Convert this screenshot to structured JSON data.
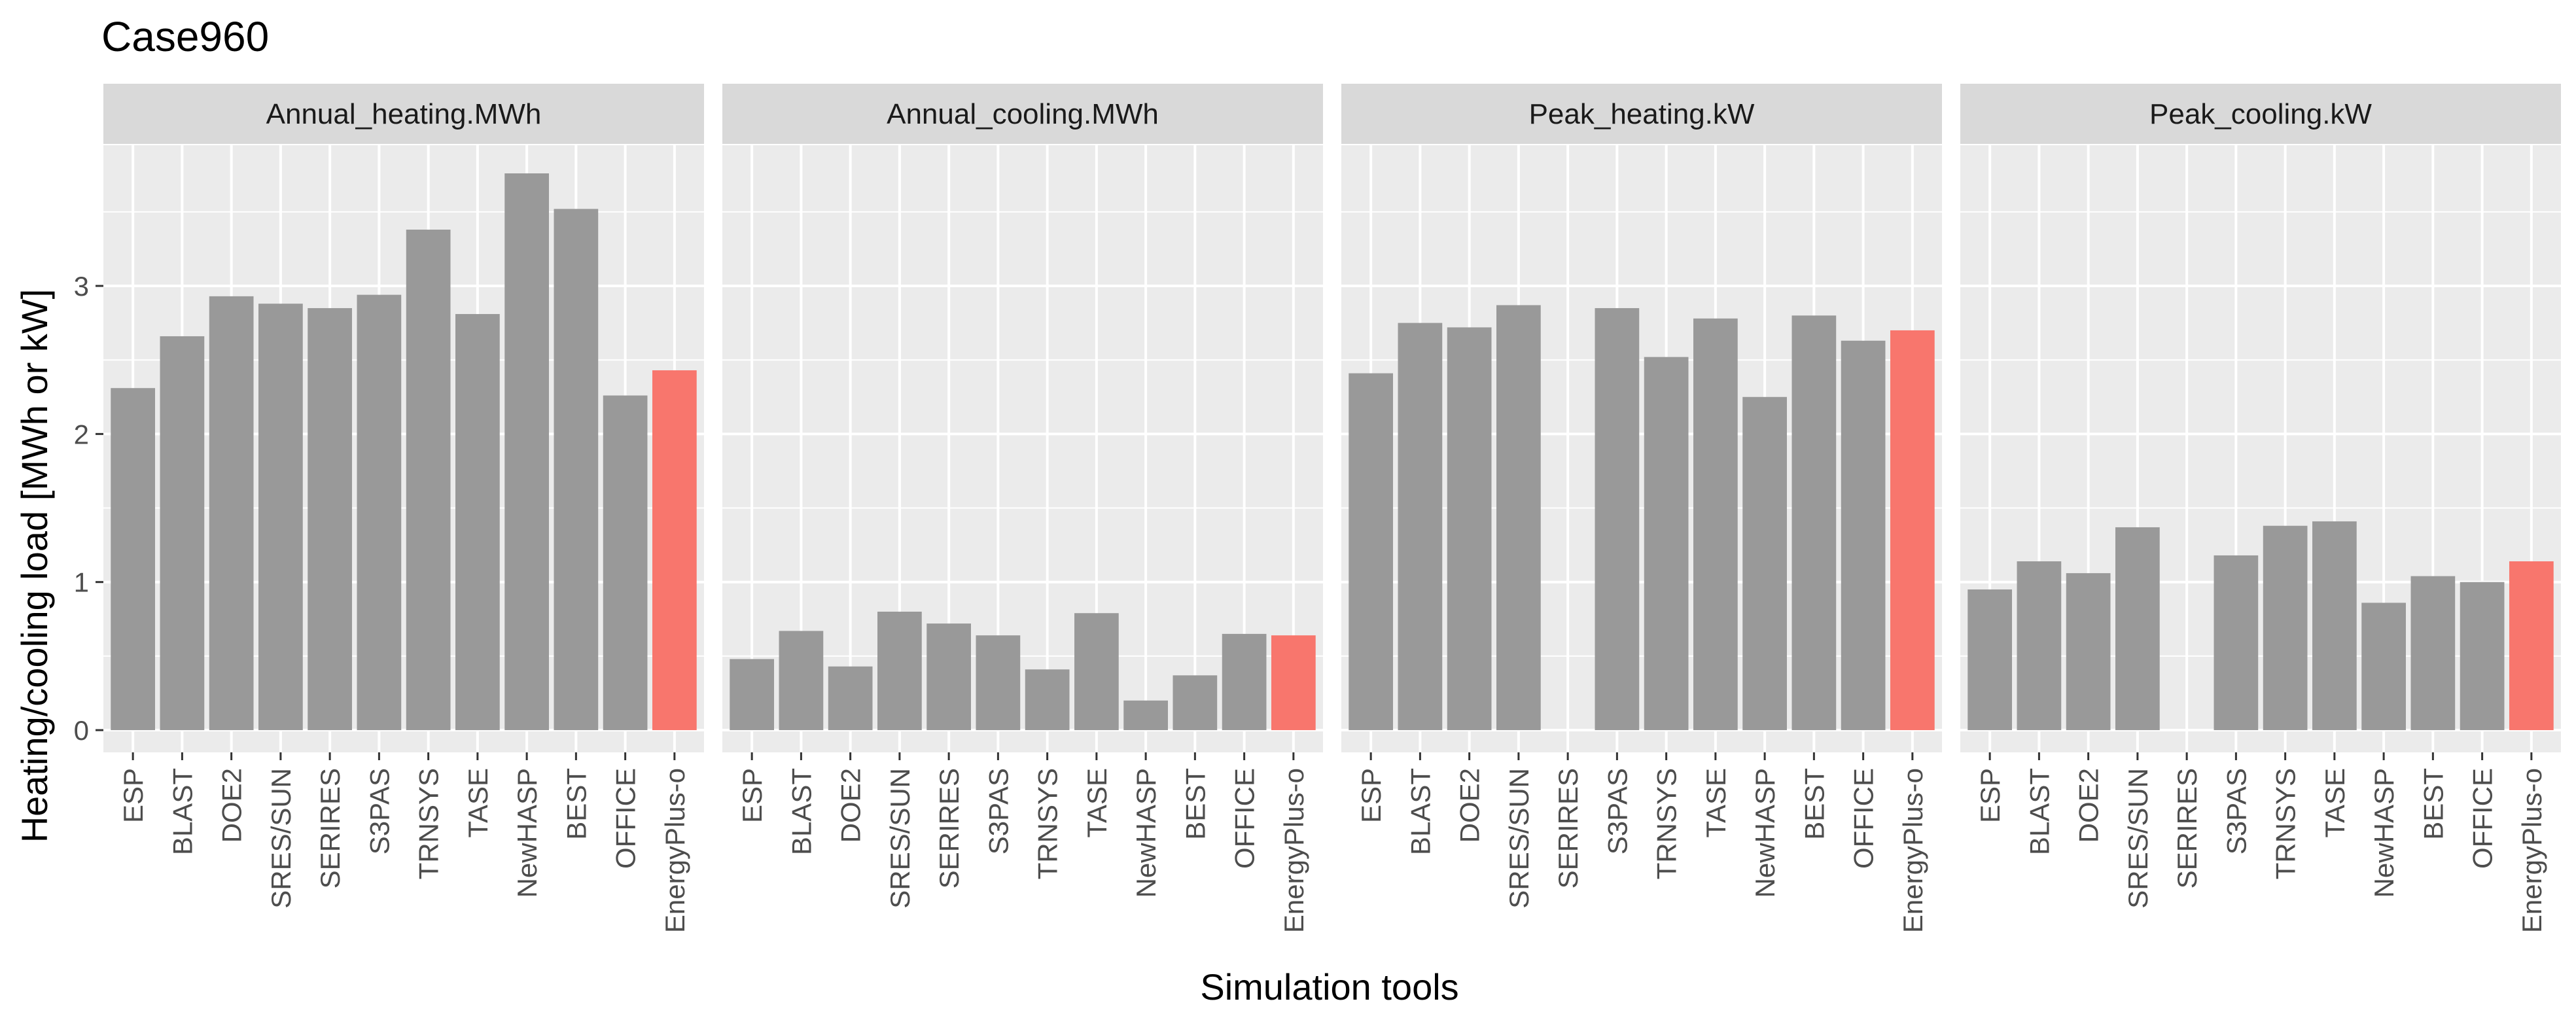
{
  "chart_data": {
    "type": "bar",
    "title": "Case960",
    "xlabel": "Simulation tools",
    "ylabel": "Heating/cooling load [MWh or kW]",
    "ylim": [
      -0.15,
      3.95
    ],
    "yticks": [
      0,
      1,
      2,
      3
    ],
    "grid": true,
    "legend": "none",
    "colors": {
      "default": "#999999",
      "highlight": "#F8766D",
      "panel_bg": "#EBEBEB",
      "strip_bg": "#D9D9D9",
      "grid": "#FFFFFF"
    },
    "highlight": "EnergyPlus-o",
    "categories": [
      "ESP",
      "BLAST",
      "DOE2",
      "SRES/SUN",
      "SERIRES",
      "S3PAS",
      "TRNSYS",
      "TASE",
      "NewHASP",
      "BEST",
      "OFFICE",
      "EnergyPlus-o"
    ],
    "series": [
      {
        "name": "Annual_heating.MWh",
        "values": [
          2.31,
          2.66,
          2.93,
          2.88,
          2.85,
          2.94,
          3.38,
          2.81,
          3.76,
          3.52,
          2.26,
          2.43
        ]
      },
      {
        "name": "Annual_cooling.MWh",
        "values": [
          0.48,
          0.67,
          0.43,
          0.8,
          0.72,
          0.64,
          0.41,
          0.79,
          0.2,
          0.37,
          0.65,
          0.64
        ]
      },
      {
        "name": "Peak_heating.kW",
        "values": [
          2.41,
          2.75,
          2.72,
          2.87,
          null,
          2.85,
          2.52,
          2.78,
          2.25,
          2.8,
          2.63,
          2.7
        ]
      },
      {
        "name": "Peak_cooling.kW",
        "values": [
          0.95,
          1.14,
          1.06,
          1.37,
          null,
          1.18,
          1.38,
          1.41,
          0.86,
          1.04,
          1.0,
          1.14
        ]
      }
    ]
  }
}
